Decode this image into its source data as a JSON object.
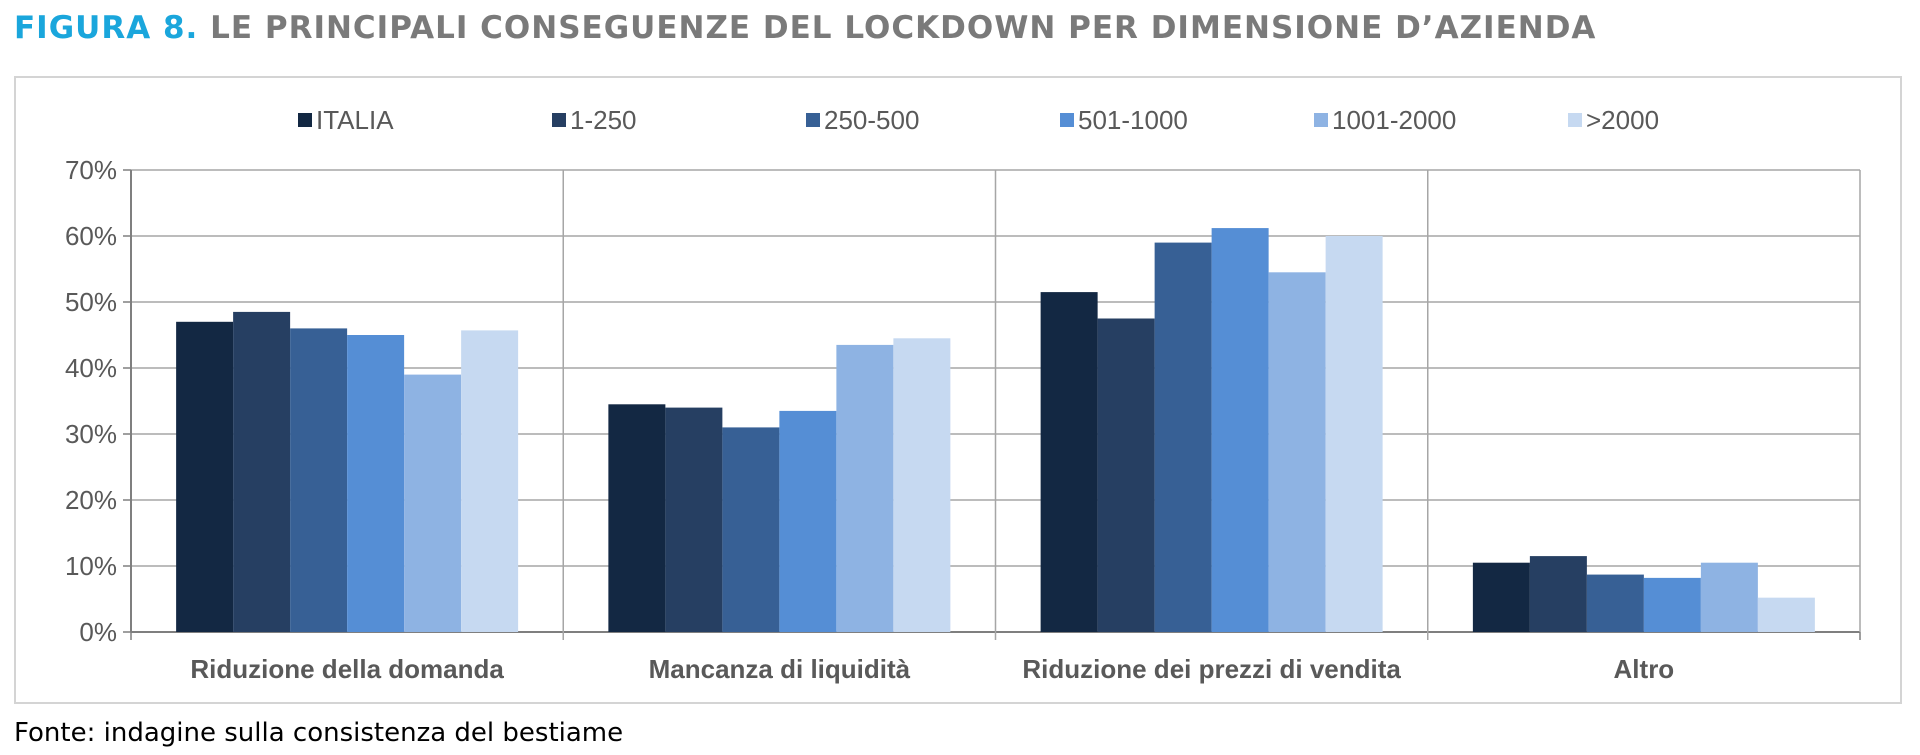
{
  "title": {
    "figure_label": "FIGURA 8.",
    "text": "LE PRINCIPALI CONSEGUENZE DEL LOCKDOWN PER DIMENSIONE D’AZIENDA"
  },
  "source": "Fonte: indagine sulla consistenza del bestiame",
  "chart_data": {
    "type": "bar",
    "categories": [
      "Riduzione della domanda",
      "Mancanza di liquidità",
      "Riduzione dei prezzi di vendita",
      "Altro"
    ],
    "series": [
      {
        "name": "ITALIA",
        "color": "#132843",
        "values": [
          47,
          34.5,
          51.5,
          10.5
        ]
      },
      {
        "name": "1-250",
        "color": "#263f62",
        "values": [
          48.5,
          34,
          47.5,
          11.5
        ]
      },
      {
        "name": "250-500",
        "color": "#376095",
        "values": [
          46,
          31,
          59,
          8.7
        ]
      },
      {
        "name": "501-1000",
        "color": "#558ed5",
        "values": [
          45,
          33.5,
          61.2,
          8.2
        ]
      },
      {
        "name": "1001-2000",
        "color": "#8eb3e3",
        "values": [
          39,
          43.5,
          54.5,
          10.5
        ]
      },
      {
        "name": ">2000",
        "color": "#c6d9f1",
        "values": [
          45.7,
          44.5,
          60,
          5.2
        ]
      }
    ],
    "y_ticks": [
      "0%",
      "10%",
      "20%",
      "30%",
      "40%",
      "50%",
      "60%",
      "70%"
    ],
    "ylim": [
      0,
      70
    ],
    "legend_position": "top",
    "grid": true
  }
}
